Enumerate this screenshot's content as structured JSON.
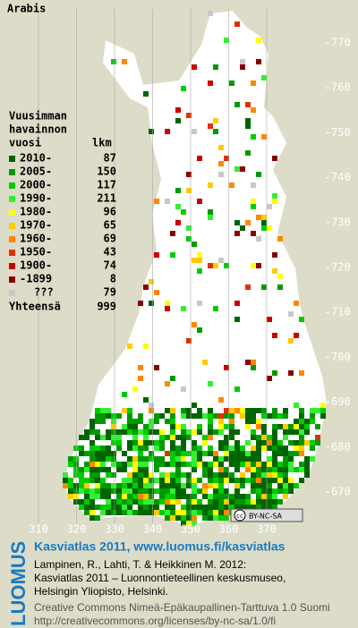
{
  "title": "Arabis",
  "legend": {
    "heading": [
      "Vuusimman",
      "havainnon",
      "vuosi"
    ],
    "count_heading": "lkm",
    "items": [
      {
        "label": "2010-",
        "count": 87,
        "color": "#006400"
      },
      {
        "label": "2005-",
        "count": 150,
        "color": "#009a00"
      },
      {
        "label": "2000-",
        "count": 117,
        "color": "#00cc00"
      },
      {
        "label": "1990-",
        "count": 211,
        "color": "#33ee33"
      },
      {
        "label": "1980-",
        "count": 96,
        "color": "#ffff00"
      },
      {
        "label": "1970-",
        "count": 65,
        "color": "#ffcc00"
      },
      {
        "label": "1960-",
        "count": 69,
        "color": "#ff8800"
      },
      {
        "label": "1950-",
        "count": 43,
        "color": "#e03000"
      },
      {
        "label": "1900-",
        "count": 74,
        "color": "#cc0000"
      },
      {
        "label": "-1899",
        "count": 8,
        "color": "#880000"
      },
      {
        "label": "???",
        "count": 79,
        "color": "#c8c8c8"
      }
    ],
    "total_label": "Yhteensä",
    "total": 999
  },
  "map": {
    "xticks": [
      310,
      320,
      330,
      340,
      350,
      360,
      370
    ],
    "yticks": [
      670,
      680,
      690,
      700,
      710,
      720,
      730,
      740,
      750,
      760,
      770
    ]
  },
  "badge": {
    "cc": "cc",
    "text": "BY-NC-SA"
  },
  "footer": {
    "logo": "LUOMUS",
    "title": "Kasviatlas 2011, www.luomus.fi/kasviatlas",
    "citation": [
      "Lampinen, R., Lahti, T. & Heikkinen M. 2012:",
      "Kasviatlas 2011 – Luonnontieteellinen keskusmuseo,",
      "Helsingin Yliopisto, Helsinki."
    ],
    "license": [
      "Creative Commons Nimeä-Epäkaupallinen-Tarttuva 1.0 Suomi",
      "http://creativecommons.org/licenses/by-nc-sa/1.0/fi"
    ]
  }
}
